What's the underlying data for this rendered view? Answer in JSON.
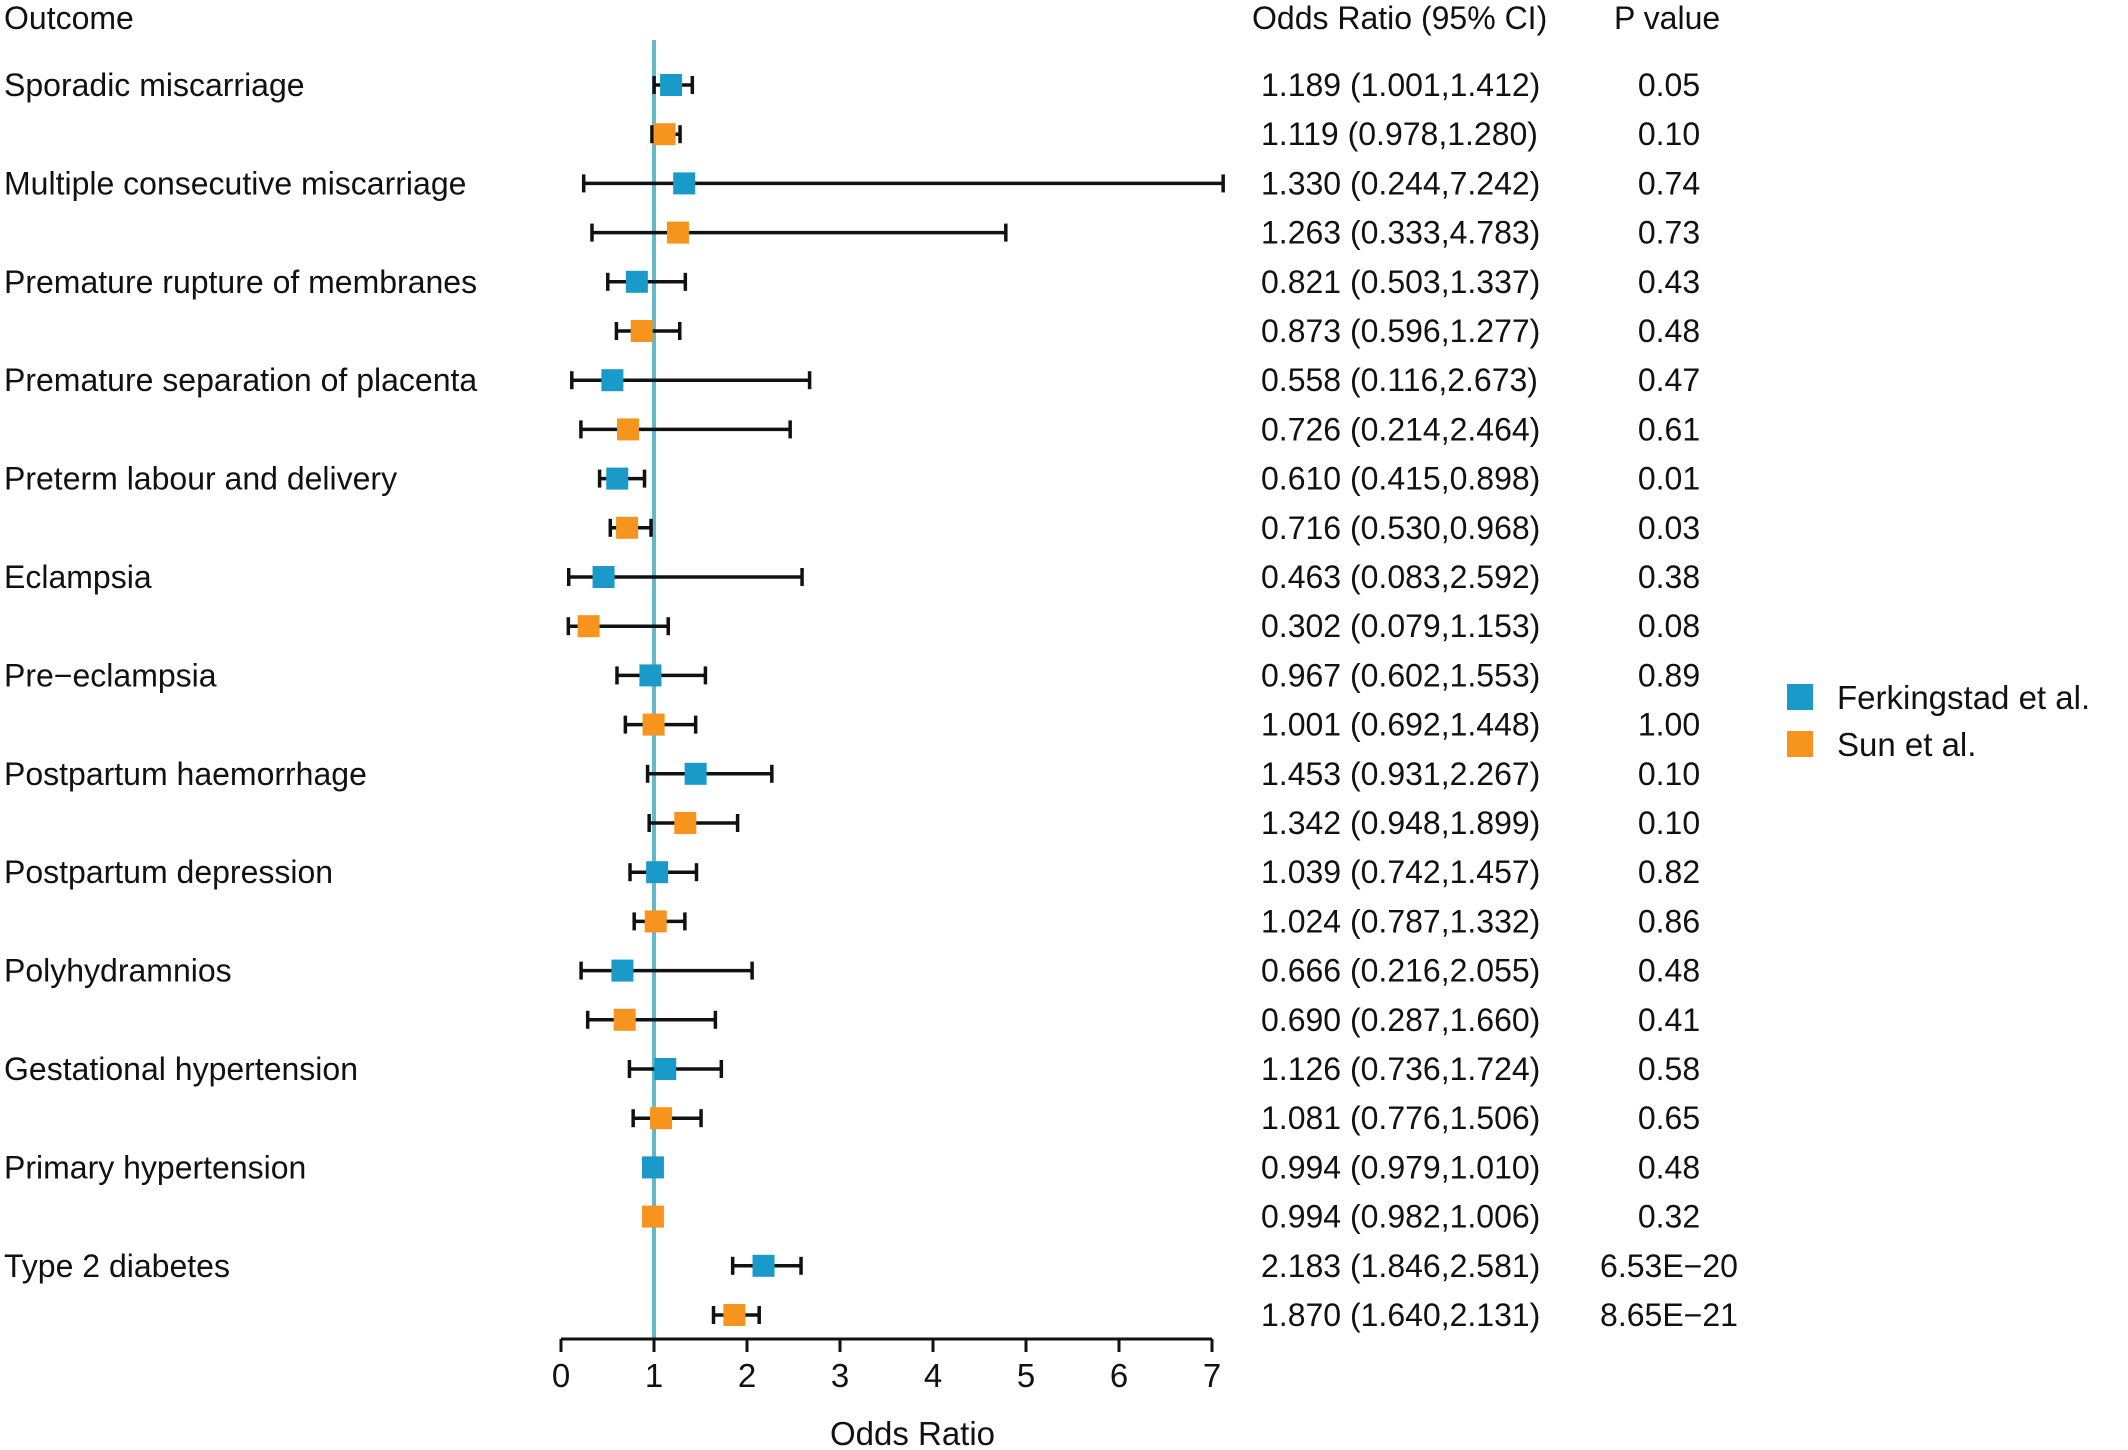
{
  "header": {
    "outcome": "Outcome",
    "or_ci": "Odds Ratio (95% CI)",
    "p_value": "P value"
  },
  "colors": {
    "reference_line": "#63b8c9",
    "ferkingstad": "#1a9ac9",
    "sun": "#f7941d",
    "whisker": "#111111"
  },
  "chart_data": {
    "type": "forest",
    "xlabel": "Odds Ratio",
    "xlim": [
      0,
      7
    ],
    "xticks": [
      0,
      1,
      2,
      3,
      4,
      5,
      6,
      7
    ],
    "reference_value": 1,
    "legend_position": "right",
    "legend": [
      {
        "name": "Ferkingstad et al.",
        "color": "#1a9ac9"
      },
      {
        "name": "Sun et al.",
        "color": "#f7941d"
      }
    ],
    "rows": [
      {
        "outcome": "Sporadic miscarriage",
        "series": 0,
        "or": 1.189,
        "lo": 1.001,
        "hi": 1.412,
        "label": "1.189 (1.001,1.412)",
        "p": "0.05"
      },
      {
        "outcome": "",
        "series": 1,
        "or": 1.119,
        "lo": 0.978,
        "hi": 1.28,
        "label": "1.119 (0.978,1.280)",
        "p": "0.10"
      },
      {
        "outcome": "Multiple consecutive miscarriage",
        "series": 0,
        "or": 1.33,
        "lo": 0.244,
        "hi": 7.242,
        "label": "1.330 (0.244,7.242)",
        "p": "0.74"
      },
      {
        "outcome": "",
        "series": 1,
        "or": 1.263,
        "lo": 0.333,
        "hi": 4.783,
        "label": "1.263 (0.333,4.783)",
        "p": "0.73"
      },
      {
        "outcome": "Premature rupture of membranes",
        "series": 0,
        "or": 0.821,
        "lo": 0.503,
        "hi": 1.337,
        "label": "0.821 (0.503,1.337)",
        "p": "0.43"
      },
      {
        "outcome": "",
        "series": 1,
        "or": 0.873,
        "lo": 0.596,
        "hi": 1.277,
        "label": "0.873 (0.596,1.277)",
        "p": "0.48"
      },
      {
        "outcome": "Premature separation of placenta",
        "series": 0,
        "or": 0.558,
        "lo": 0.116,
        "hi": 2.673,
        "label": "0.558 (0.116,2.673)",
        "p": "0.47"
      },
      {
        "outcome": "",
        "series": 1,
        "or": 0.726,
        "lo": 0.214,
        "hi": 2.464,
        "label": "0.726 (0.214,2.464)",
        "p": "0.61"
      },
      {
        "outcome": "Preterm labour and delivery",
        "series": 0,
        "or": 0.61,
        "lo": 0.415,
        "hi": 0.898,
        "label": "0.610 (0.415,0.898)",
        "p": "0.01"
      },
      {
        "outcome": "",
        "series": 1,
        "or": 0.716,
        "lo": 0.53,
        "hi": 0.968,
        "label": "0.716 (0.530,0.968)",
        "p": "0.03"
      },
      {
        "outcome": "Eclampsia",
        "series": 0,
        "or": 0.463,
        "lo": 0.083,
        "hi": 2.592,
        "label": "0.463 (0.083,2.592)",
        "p": "0.38"
      },
      {
        "outcome": "",
        "series": 1,
        "or": 0.302,
        "lo": 0.079,
        "hi": 1.153,
        "label": "0.302 (0.079,1.153)",
        "p": "0.08"
      },
      {
        "outcome": "Pre−eclampsia",
        "series": 0,
        "or": 0.967,
        "lo": 0.602,
        "hi": 1.553,
        "label": "0.967 (0.602,1.553)",
        "p": "0.89"
      },
      {
        "outcome": "",
        "series": 1,
        "or": 1.001,
        "lo": 0.692,
        "hi": 1.448,
        "label": "1.001 (0.692,1.448)",
        "p": "1.00"
      },
      {
        "outcome": "Postpartum haemorrhage",
        "series": 0,
        "or": 1.453,
        "lo": 0.931,
        "hi": 2.267,
        "label": "1.453 (0.931,2.267)",
        "p": "0.10"
      },
      {
        "outcome": "",
        "series": 1,
        "or": 1.342,
        "lo": 0.948,
        "hi": 1.899,
        "label": "1.342 (0.948,1.899)",
        "p": "0.10"
      },
      {
        "outcome": "Postpartum depression",
        "series": 0,
        "or": 1.039,
        "lo": 0.742,
        "hi": 1.457,
        "label": "1.039 (0.742,1.457)",
        "p": "0.82"
      },
      {
        "outcome": "",
        "series": 1,
        "or": 1.024,
        "lo": 0.787,
        "hi": 1.332,
        "label": "1.024 (0.787,1.332)",
        "p": "0.86"
      },
      {
        "outcome": "Polyhydramnios",
        "series": 0,
        "or": 0.666,
        "lo": 0.216,
        "hi": 2.055,
        "label": "0.666 (0.216,2.055)",
        "p": "0.48"
      },
      {
        "outcome": "",
        "series": 1,
        "or": 0.69,
        "lo": 0.287,
        "hi": 1.66,
        "label": "0.690 (0.287,1.660)",
        "p": "0.41"
      },
      {
        "outcome": "Gestational hypertension",
        "series": 0,
        "or": 1.126,
        "lo": 0.736,
        "hi": 1.724,
        "label": "1.126 (0.736,1.724)",
        "p": "0.58"
      },
      {
        "outcome": "",
        "series": 1,
        "or": 1.081,
        "lo": 0.776,
        "hi": 1.506,
        "label": "1.081 (0.776,1.506)",
        "p": "0.65"
      },
      {
        "outcome": "Primary hypertension",
        "series": 0,
        "or": 0.994,
        "lo": 0.979,
        "hi": 1.01,
        "label": "0.994 (0.979,1.010)",
        "p": "0.48"
      },
      {
        "outcome": "",
        "series": 1,
        "or": 0.994,
        "lo": 0.982,
        "hi": 1.006,
        "label": "0.994 (0.982,1.006)",
        "p": "0.32"
      },
      {
        "outcome": "Type 2 diabetes",
        "series": 0,
        "or": 2.183,
        "lo": 1.846,
        "hi": 2.581,
        "label": "2.183 (1.846,2.581)",
        "p": "6.53E−20"
      },
      {
        "outcome": "",
        "series": 1,
        "or": 1.87,
        "lo": 1.64,
        "hi": 2.131,
        "label": "1.870 (1.640,2.131)",
        "p": "8.65E−21"
      }
    ]
  }
}
